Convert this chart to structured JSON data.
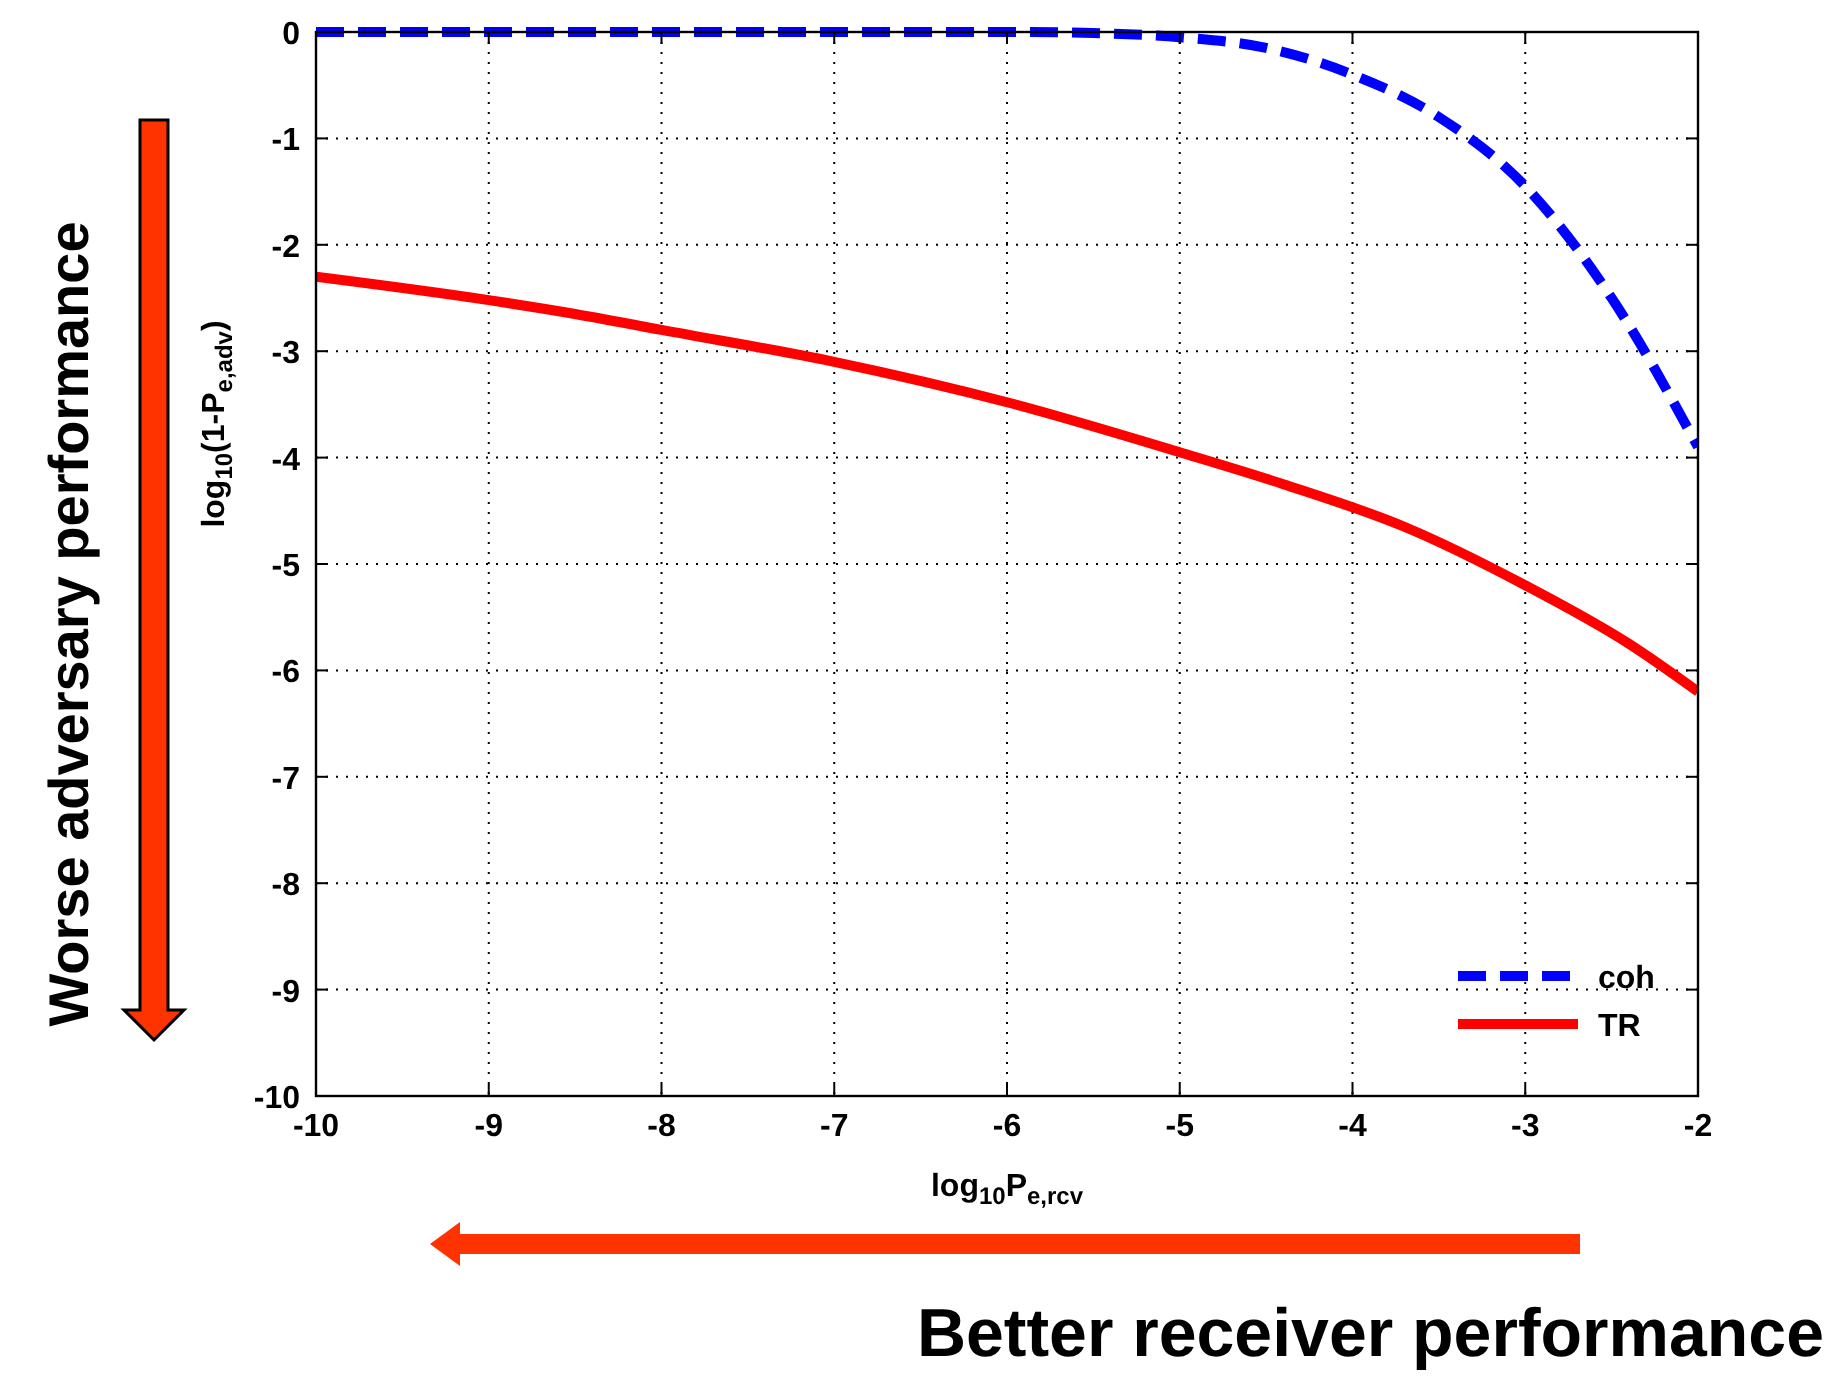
{
  "chart_data": {
    "type": "line",
    "xlabel": "log$_{10}$P$_{e,rcv}$",
    "ylabel": "log$_{10}$(1-P$_{e,adv}$)",
    "annotations": [
      "Worse adversary performance",
      "Better receiver performance"
    ],
    "xlim": [
      -10,
      -2
    ],
    "ylim": [
      -10,
      0
    ],
    "xticks": [
      -10,
      -9,
      -8,
      -7,
      -6,
      -5,
      -4,
      -3,
      -2
    ],
    "yticks": [
      0,
      -1,
      -2,
      -3,
      -4,
      -5,
      -6,
      -7,
      -8,
      -9,
      -10
    ],
    "grid": true,
    "legend": "bottom right",
    "series": [
      {
        "name": "coh",
        "color": "#0000ff",
        "line_style": "dashed",
        "x": [
          -10,
          -9,
          -8,
          -7,
          -6,
          -5.5,
          -5,
          -4.5,
          -4,
          -3.5,
          -3,
          -2.5,
          -2
        ],
        "values": [
          0,
          0,
          0,
          0,
          0,
          -0.01,
          -0.05,
          -0.15,
          -0.4,
          -0.8,
          -1.45,
          -2.5,
          -3.9
        ]
      },
      {
        "name": "TR",
        "color": "#ff0000",
        "line_style": "solid",
        "x": [
          -10,
          -9,
          -8.5,
          -8,
          -7,
          -6,
          -5,
          -4.4,
          -3.7,
          -3,
          -2.4,
          -2
        ],
        "values": [
          -2.3,
          -2.52,
          -2.65,
          -2.8,
          -3.1,
          -3.48,
          -3.95,
          -4.25,
          -4.65,
          -5.2,
          -5.75,
          -6.2
        ]
      }
    ]
  }
}
